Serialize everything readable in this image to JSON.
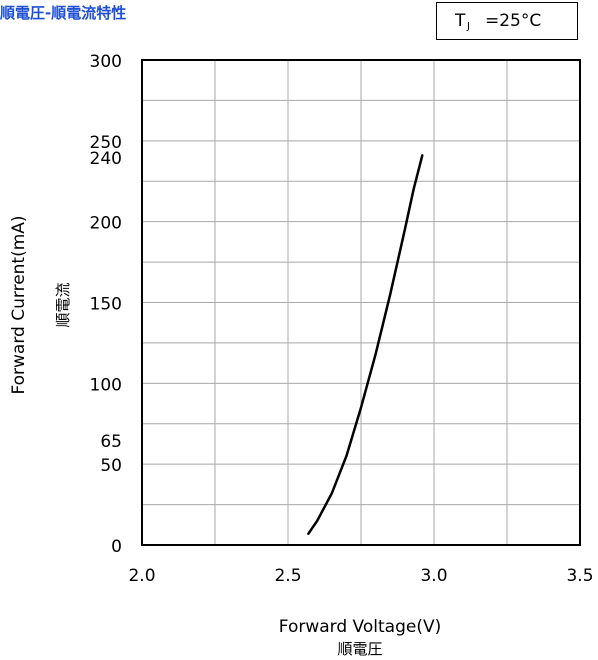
{
  "page_title": "順電圧-順電流特性",
  "condition": {
    "symbol": "T",
    "subscript": "J",
    "value": "=25°C"
  },
  "chart_data": {
    "type": "line",
    "xlabel": "Forward Voltage(V)",
    "xlabel_sub": "順電圧",
    "ylabel": "Forward Current(mA)",
    "ylabel_sub": "順電流",
    "xlim": [
      2.0,
      3.5
    ],
    "ylim": [
      0,
      300
    ],
    "x_ticks": [
      2.0,
      2.5,
      3.0,
      3.5
    ],
    "x_tick_labels": [
      "2.0",
      "2.5",
      "3.0",
      "3.5"
    ],
    "y_ticks": [
      0,
      50,
      65,
      100,
      150,
      200,
      240,
      250,
      300
    ],
    "y_tick_labels": [
      "0",
      "50",
      "65",
      "100",
      "150",
      "200",
      "240",
      "250",
      "300"
    ],
    "grid": true,
    "series": [
      {
        "color": "#000000",
        "x": [
          2.57,
          2.6,
          2.65,
          2.7,
          2.75,
          2.8,
          2.85,
          2.9,
          2.93,
          2.96
        ],
        "y": [
          7,
          15,
          32,
          55,
          85,
          118,
          155,
          195,
          220,
          241
        ]
      }
    ]
  }
}
